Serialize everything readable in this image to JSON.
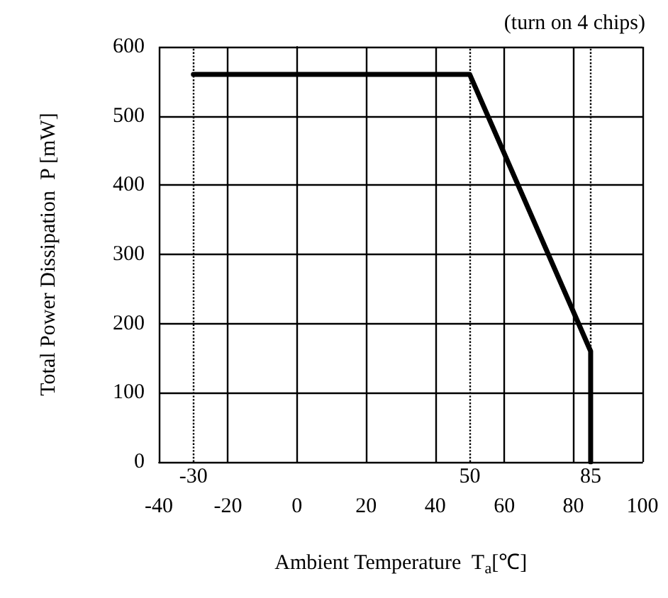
{
  "chart_data": {
    "type": "line",
    "xlabel": "Ambient Temperature  T$_{a}$[℃]",
    "ylabel": "Total Power Dissipation  P [mW]",
    "annotations": [
      "(turn on 4 chips)"
    ],
    "x": [
      -30,
      50,
      85,
      85
    ],
    "series": [
      {
        "color": "#000000",
        "values": [
          560,
          560,
          160,
          0
        ]
      }
    ],
    "xlim": [
      -40,
      100
    ],
    "xticks": [
      -40,
      -20,
      0,
      20,
      40,
      60,
      80,
      100
    ],
    "ylim": [
      0,
      600
    ],
    "yticks": [
      0,
      100,
      200,
      300,
      400,
      500,
      600
    ],
    "ref_lines": [
      {
        "axis": "x",
        "value": -30,
        "label": "-30",
        "line_style": "dotted"
      },
      {
        "axis": "x",
        "value": 50,
        "label": "50",
        "line_style": "dotted"
      },
      {
        "axis": "x",
        "value": 85,
        "label": "85",
        "line_style": "dotted"
      }
    ],
    "grid": true,
    "marker": "none",
    "line_style": "solid"
  }
}
